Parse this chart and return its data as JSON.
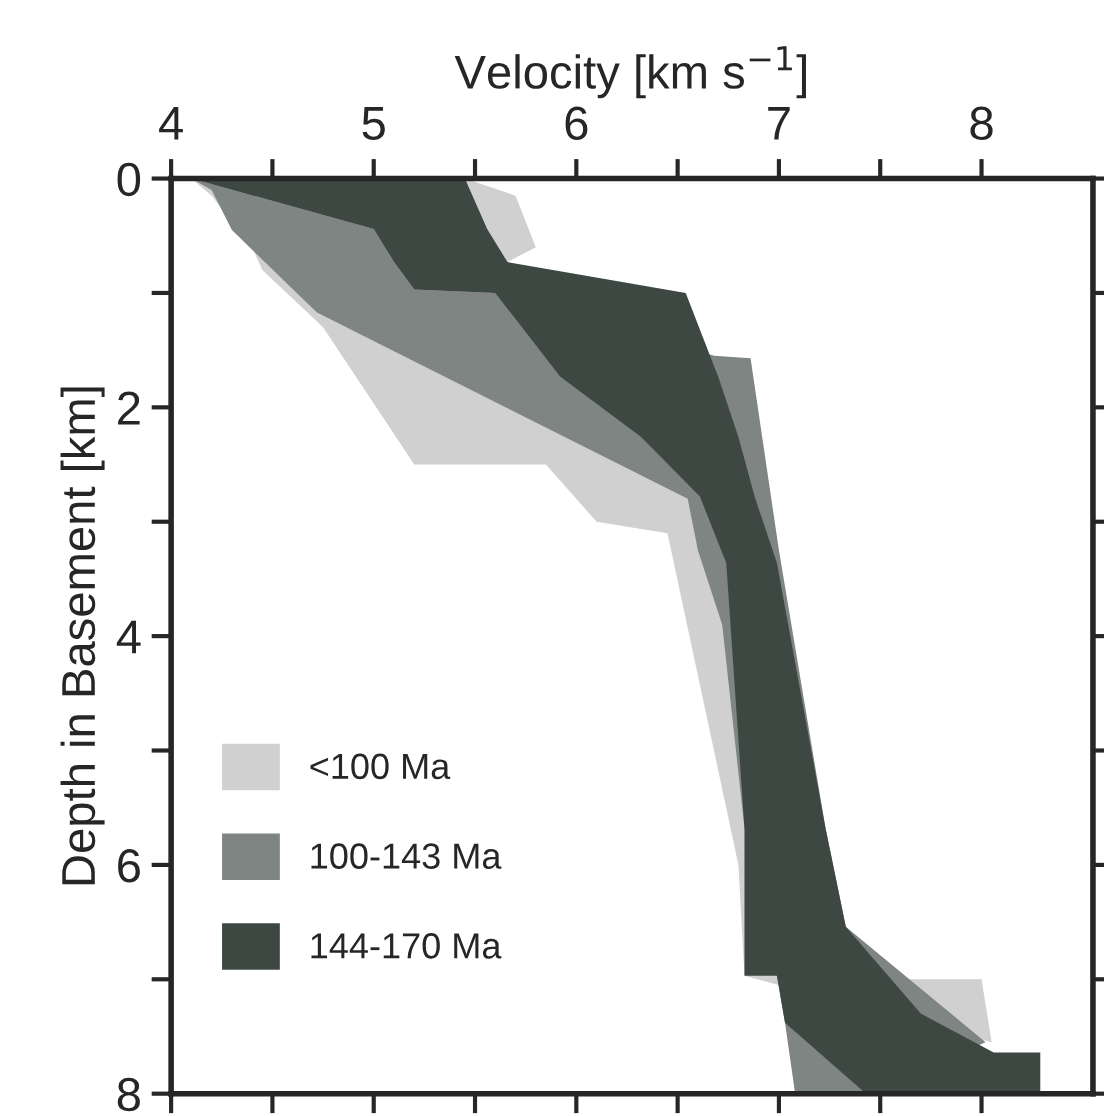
{
  "chart_data": {
    "type": "area",
    "xlabel": "Velocity [km s$^{−1}$]",
    "ylabel": "Depth in Basement [km]",
    "xlim": [
      4,
      8.55
    ],
    "ylim": [
      8,
      0
    ],
    "xticks": [
      4,
      {
        "value": 4.5,
        "label": null
      },
      5,
      {
        "value": 5.5,
        "label": null
      },
      6,
      {
        "value": 6.5,
        "label": null
      },
      7,
      {
        "value": 7.5,
        "label": null
      },
      8
    ],
    "yticks": [
      0,
      {
        "value": 1,
        "label": null
      },
      2,
      {
        "value": 3,
        "label": null
      },
      4,
      {
        "value": 5,
        "label": null
      },
      6,
      {
        "value": 7,
        "label": null
      },
      8
    ],
    "legend": "bottom left",
    "grid": false,
    "series": [
      {
        "name": "<100 Ma",
        "color": "#d0d0d0",
        "x": [
          4.1,
          4.2,
          4.4,
          4.45,
          4.75,
          5.2,
          5.85,
          6.1,
          6.45,
          6.8,
          6.83,
          8.05,
          8.0,
          7.63,
          7.33,
          7.23,
          6.99,
          6.55,
          5.66,
          5.8,
          5.7,
          5.45
        ],
        "values": [
          0,
          0.15,
          0.6,
          0.8,
          1.3,
          2.5,
          2.5,
          3.0,
          3.1,
          6.0,
          6.97,
          7.55,
          7.0,
          7.0,
          6.54,
          5.68,
          null,
          2.8,
          0.73,
          0.6,
          0.15,
          0
        ]
      },
      {
        "name": "100-143 Ma",
        "color": "#7f8582",
        "x": [
          4.1,
          4.2,
          4.3,
          4.62,
          4.72,
          6.55,
          6.6,
          6.72,
          6.83,
          6.99,
          7.03,
          7.08,
          7.43,
          8.02,
          7.33,
          7.23,
          7.0,
          6.86,
          6.68,
          5.6,
          5.2,
          5.1,
          5.0
        ],
        "values": [
          0,
          0.1,
          0.45,
          1.0,
          1.17,
          2.8,
          3.25,
          3.9,
          5.68,
          6.97,
          7.38,
          8.0,
          8.0,
          7.55,
          6.54,
          5.68,
          3.25,
          1.57,
          1.55,
          1.0,
          0.97,
          0.73,
          0.44
        ]
      },
      {
        "name": "144-170 Ma",
        "color": "#3d4843",
        "x": [
          4.1,
          5.0,
          5.1,
          5.2,
          5.6,
          5.92,
          6.32,
          6.61,
          6.74,
          6.83,
          6.83,
          6.99,
          7.03,
          7.43,
          8.29,
          8.29,
          8.06,
          7.7,
          7.33,
          7.23,
          6.99,
          6.88,
          6.8,
          6.7,
          6.66,
          6.54,
          5.66,
          5.56,
          5.45
        ],
        "values": [
          0,
          0.44,
          0.73,
          0.97,
          1.0,
          1.73,
          2.26,
          2.78,
          3.36,
          5.68,
          6.97,
          6.97,
          7.38,
          8.0,
          8.0,
          7.64,
          7.64,
          7.3,
          6.54,
          5.68,
          3.36,
          2.78,
          2.26,
          1.73,
          1.55,
          1.0,
          0.73,
          0.44,
          0
        ]
      }
    ]
  }
}
